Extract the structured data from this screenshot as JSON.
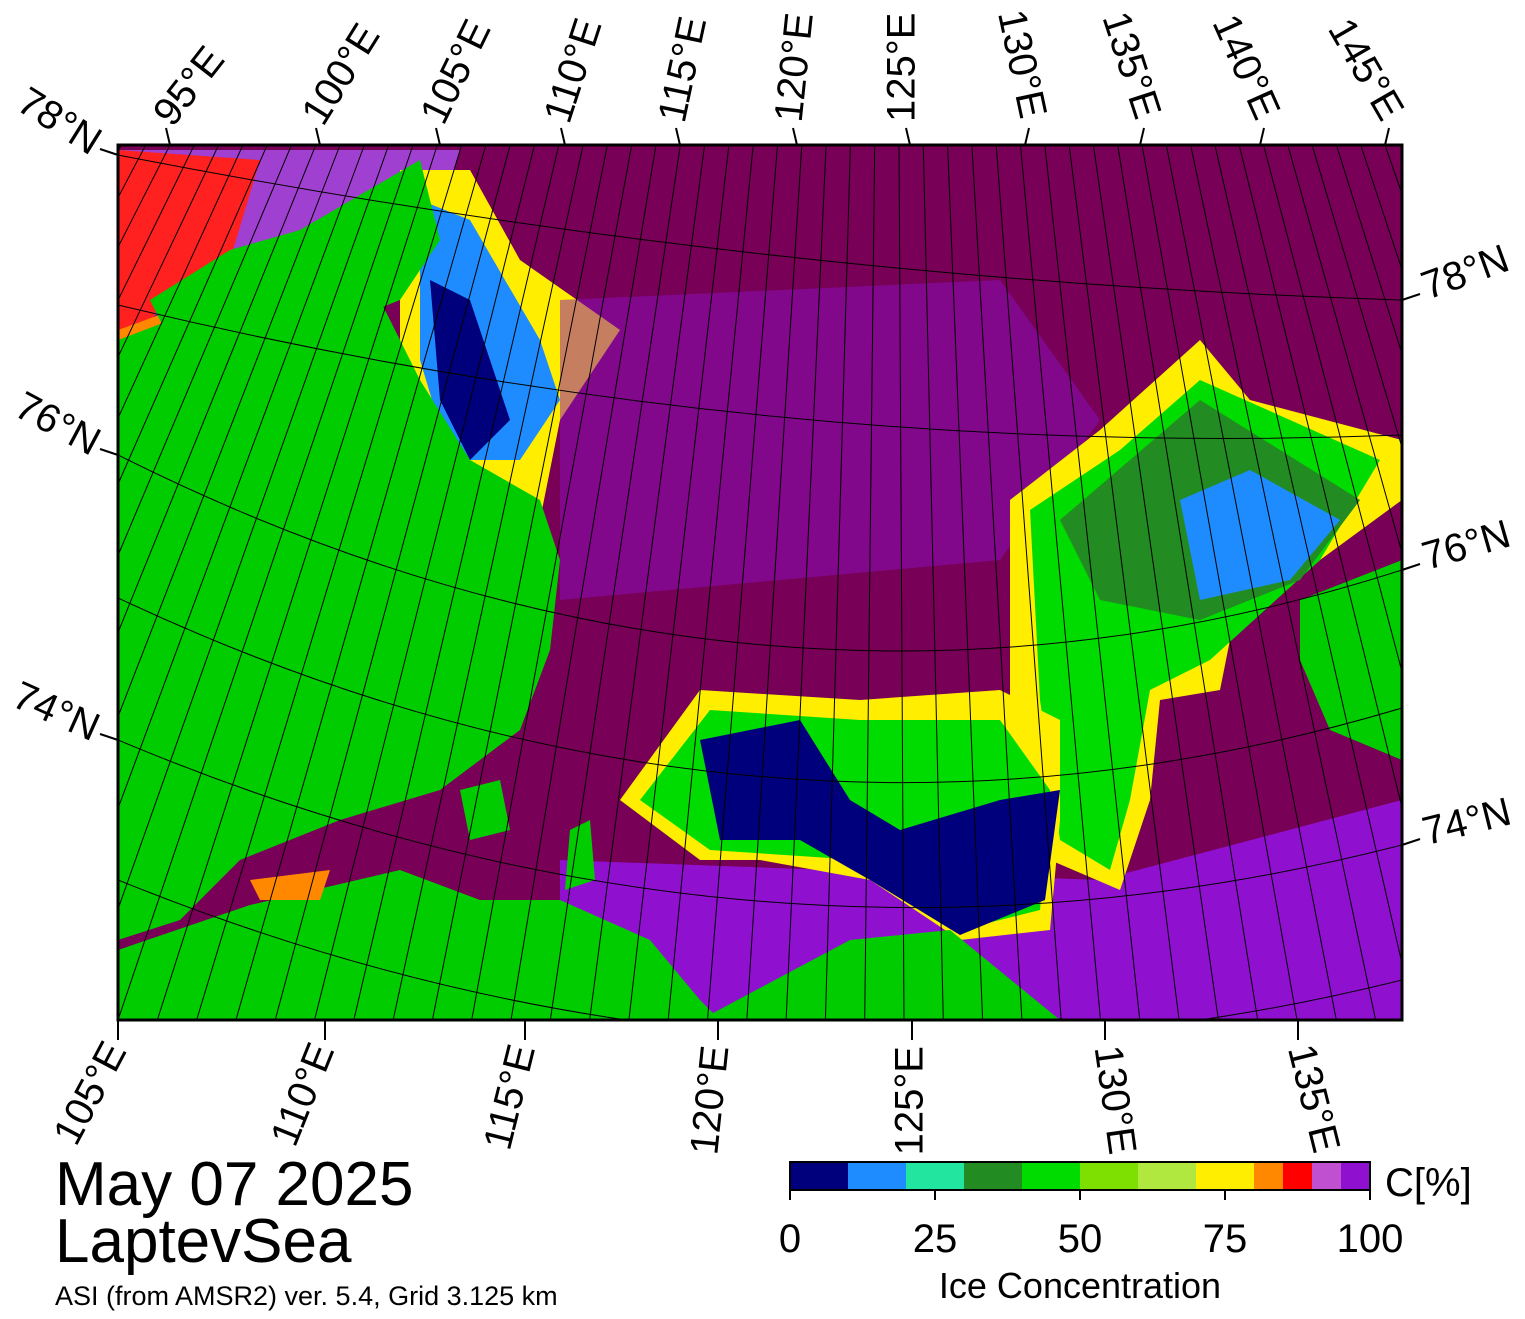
{
  "map": {
    "top_lon_labels": [
      "95°E",
      "100°E",
      "105°E",
      "110°E",
      "115°E",
      "120°E",
      "125°E",
      "130°E",
      "135°E",
      "140°E",
      "145°E"
    ],
    "bottom_lon_labels": [
      "105°E",
      "110°E",
      "115°E",
      "120°E",
      "125°E",
      "130°E",
      "135°E"
    ],
    "left_lat_labels": [
      "78°N",
      "76°N",
      "74°N"
    ],
    "right_lat_labels": [
      "78°N",
      "76°N",
      "74°N"
    ]
  },
  "date": "May 07 2025",
  "region": "LaptevSea",
  "source": "ASI (from AMSR2) ver. 5.4,  Grid 3.125 km",
  "colorbar": {
    "label": "Ice Concentration",
    "unit": "C[%]",
    "range": [
      0,
      100
    ],
    "ticks": [
      0,
      25,
      50,
      75,
      100
    ],
    "bounds": [
      0,
      10,
      20,
      30,
      40,
      50,
      60,
      70,
      80,
      85,
      90,
      95,
      100
    ],
    "colors": [
      "#00007c",
      "#1e8cff",
      "#22e6a0",
      "#228b22",
      "#00dc00",
      "#7ee000",
      "#b0e840",
      "#ffee00",
      "#ff8800",
      "#ff0000",
      "#c050d0",
      "#9010d0"
    ]
  }
}
